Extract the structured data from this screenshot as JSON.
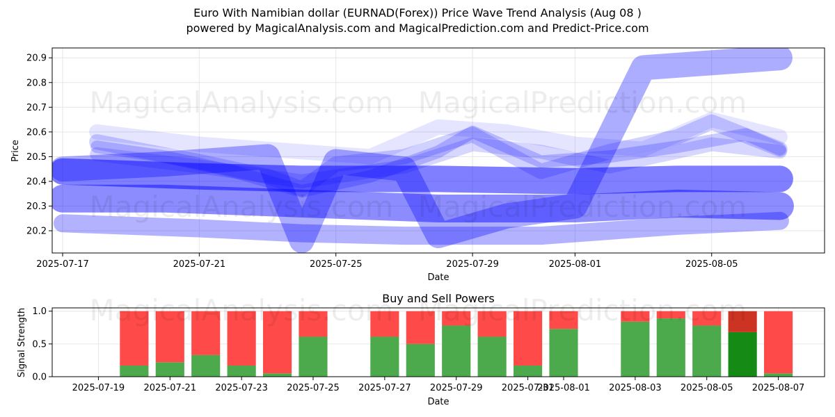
{
  "title_line1": "Euro With Namibian dollar (EURNAD(Forex)) Price Wave Trend Analysis (Aug 08 )",
  "title_line2": "powered by MagicalAnalysis.com and MagicalPrediction.com and Predict-Price.com",
  "watermarks": [
    "MagicalAnalysis.com",
    "MagicalPrediction.com"
  ],
  "chart_data": [
    {
      "type": "line",
      "xlabel": "Date",
      "ylabel": "Price",
      "x_ticks": [
        "2025-07-17",
        "2025-07-21",
        "2025-07-25",
        "2025-07-29",
        "2025-08-01",
        "2025-08-05"
      ],
      "x_range": [
        "2025-07-17",
        "2025-08-08"
      ],
      "y_ticks": [
        20.2,
        20.3,
        20.4,
        20.5,
        20.6,
        20.7,
        20.8,
        20.9
      ],
      "ylim": [
        20.11,
        20.94
      ],
      "grid": true,
      "series_color": "#0000ff",
      "waves": [
        {
          "x": [
            "2025-07-17",
            "2025-07-20",
            "2025-07-24",
            "2025-07-28",
            "2025-08-01",
            "2025-08-04",
            "2025-08-07"
          ],
          "y": [
            20.33,
            20.33,
            20.31,
            20.29,
            20.29,
            20.31,
            20.3
          ],
          "opacity": 0.45,
          "width": 40
        },
        {
          "x": [
            "2025-07-17",
            "2025-07-21",
            "2025-07-24",
            "2025-07-28",
            "2025-08-01",
            "2025-08-04",
            "2025-08-07"
          ],
          "y": [
            20.44,
            20.42,
            20.41,
            20.41,
            20.4,
            20.41,
            20.41
          ],
          "opacity": 0.5,
          "width": 38
        },
        {
          "x": [
            "2025-07-17",
            "2025-07-21",
            "2025-07-24",
            "2025-07-27",
            "2025-07-31",
            "2025-08-04",
            "2025-08-07"
          ],
          "y": [
            20.23,
            20.21,
            20.19,
            20.18,
            20.18,
            20.22,
            20.24
          ],
          "opacity": 0.3,
          "width": 26
        },
        {
          "x": [
            "2025-07-18",
            "2025-07-21",
            "2025-07-23",
            "2025-07-24",
            "2025-07-25",
            "2025-07-27",
            "2025-07-29",
            "2025-07-31",
            "2025-08-02",
            "2025-08-04",
            "2025-08-05",
            "2025-08-07"
          ],
          "y": [
            20.56,
            20.48,
            20.42,
            20.37,
            20.47,
            20.5,
            20.59,
            20.44,
            20.52,
            20.58,
            20.64,
            20.53
          ],
          "opacity": 0.18,
          "width": 22
        },
        {
          "x": [
            "2025-07-18",
            "2025-07-20",
            "2025-07-22",
            "2025-07-24",
            "2025-07-26",
            "2025-07-28",
            "2025-07-29",
            "2025-07-31",
            "2025-08-02",
            "2025-08-04",
            "2025-08-06",
            "2025-08-07"
          ],
          "y": [
            20.54,
            20.5,
            20.44,
            20.36,
            20.42,
            20.52,
            20.6,
            20.48,
            20.5,
            20.54,
            20.59,
            20.53
          ],
          "opacity": 0.2,
          "width": 18
        },
        {
          "x": [
            "2025-07-18",
            "2025-07-21",
            "2025-07-24",
            "2025-07-27",
            "2025-07-29",
            "2025-07-31",
            "2025-08-02",
            "2025-08-05",
            "2025-08-07"
          ],
          "y": [
            20.51,
            20.46,
            20.4,
            20.46,
            20.55,
            20.52,
            20.46,
            20.55,
            20.52
          ],
          "opacity": 0.16,
          "width": 20
        },
        {
          "x": [
            "2025-07-18",
            "2025-07-21",
            "2025-07-24",
            "2025-07-26",
            "2025-07-28",
            "2025-07-30",
            "2025-08-01",
            "2025-08-03",
            "2025-08-05",
            "2025-08-07"
          ],
          "y": [
            20.6,
            20.55,
            20.52,
            20.5,
            20.62,
            20.6,
            20.55,
            20.53,
            20.65,
            20.58
          ],
          "opacity": 0.1,
          "width": 22
        },
        {
          "x": [
            "2025-07-17",
            "2025-07-20",
            "2025-07-23",
            "2025-07-24",
            "2025-07-25",
            "2025-07-27",
            "2025-07-28",
            "2025-07-30",
            "2025-08-01",
            "2025-08-03",
            "2025-08-07"
          ],
          "y": [
            20.45,
            20.47,
            20.5,
            20.16,
            20.48,
            20.45,
            20.18,
            20.26,
            20.3,
            20.86,
            20.9
          ],
          "opacity": 0.32,
          "width": 36
        }
      ]
    },
    {
      "type": "bar",
      "title": "Buy and Sell Powers",
      "xlabel": "Date",
      "ylabel": "Signal Strength",
      "x_ticks": [
        "2025-07-19",
        "2025-07-21",
        "2025-07-23",
        "2025-07-25",
        "2025-07-27",
        "2025-07-29",
        "2025-07-31",
        "2025-08-01",
        "2025-08-03",
        "2025-08-05",
        "2025-08-07"
      ],
      "x_range": [
        "2025-07-18",
        "2025-08-08"
      ],
      "y_ticks": [
        0.0,
        0.5,
        1.0
      ],
      "ylim": [
        0,
        1.05
      ],
      "grid": true,
      "buy_color": "#4caa4c",
      "sell_color": "#ff4a4a",
      "highlight_buy_color": "#158a15",
      "highlight_sell_color": "#cc3322",
      "dates": [
        "2025-07-20",
        "2025-07-21",
        "2025-07-22",
        "2025-07-23",
        "2025-07-24",
        "2025-07-25",
        "2025-07-27",
        "2025-07-28",
        "2025-07-29",
        "2025-07-30",
        "2025-07-31",
        "2025-08-01",
        "2025-08-03",
        "2025-08-04",
        "2025-08-05",
        "2025-08-06",
        "2025-08-07"
      ],
      "buy": [
        0.17,
        0.22,
        0.33,
        0.17,
        0.05,
        0.61,
        0.61,
        0.5,
        0.78,
        0.61,
        0.17,
        0.73,
        0.84,
        0.89,
        0.78,
        0.68,
        0.05
      ],
      "sell": [
        0.83,
        0.78,
        0.67,
        0.83,
        0.95,
        0.39,
        0.39,
        0.5,
        0.22,
        0.39,
        0.83,
        0.27,
        0.16,
        0.11,
        0.22,
        0.32,
        0.95
      ],
      "highlight_date": "2025-08-06"
    }
  ]
}
